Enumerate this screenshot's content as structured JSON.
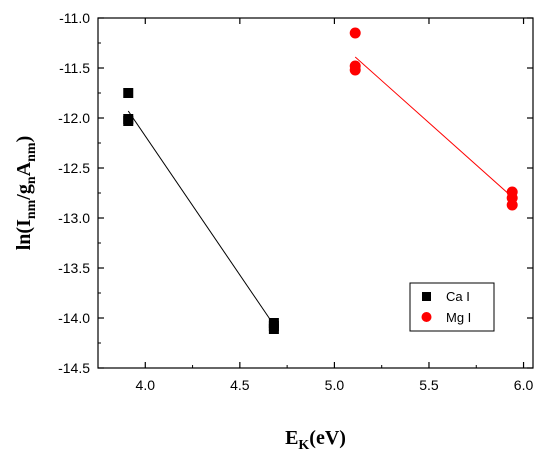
{
  "chart_data": {
    "type": "scatter",
    "xlabel": {
      "main": "E",
      "sub": "K",
      "rest": "(eV)"
    },
    "ylabel": {
      "parts": [
        {
          "t": "ln(I",
          "sub": false
        },
        {
          "t": "nm",
          "sub": true
        },
        {
          "t": "/g",
          "sub": false
        },
        {
          "t": "n",
          "sub": true
        },
        {
          "t": "A",
          "sub": false
        },
        {
          "t": "nm",
          "sub": true
        },
        {
          "t": ")",
          "sub": false
        }
      ]
    },
    "xlim": [
      3.75,
      6.05
    ],
    "ylim": [
      -14.5,
      -11.0
    ],
    "xticks": [
      4.0,
      4.5,
      5.0,
      5.5,
      6.0
    ],
    "xtick_labels": [
      "4.0",
      "4.5",
      "5.0",
      "5.5",
      "6.0"
    ],
    "yticks": [
      -11.0,
      -11.5,
      -12.0,
      -12.5,
      -13.0,
      -13.5,
      -14.0,
      -14.5
    ],
    "ytick_labels": [
      "-11.0",
      "-11.5",
      "-12.0",
      "-12.5",
      "-13.0",
      "-13.5",
      "-14.0",
      "-14.5"
    ],
    "grid": false,
    "legend_position": "lower-right",
    "series": [
      {
        "name": "Ca I",
        "marker": "square",
        "color": "#000000",
        "points": [
          [
            3.91,
            -11.75
          ],
          [
            3.91,
            -12.01
          ],
          [
            3.91,
            -12.03
          ],
          [
            4.68,
            -14.05
          ],
          [
            4.68,
            -14.08
          ],
          [
            4.68,
            -14.11
          ]
        ],
        "fit": [
          [
            3.91,
            -11.93
          ],
          [
            4.68,
            -14.07
          ]
        ]
      },
      {
        "name": "Mg I",
        "marker": "circle",
        "color": "#ff0000",
        "points": [
          [
            5.11,
            -11.15
          ],
          [
            5.11,
            -11.48
          ],
          [
            5.11,
            -11.52
          ],
          [
            5.94,
            -12.74
          ],
          [
            5.94,
            -12.8
          ],
          [
            5.94,
            -12.87
          ]
        ],
        "fit": [
          [
            5.11,
            -11.39
          ],
          [
            5.94,
            -12.79
          ]
        ]
      }
    ]
  }
}
